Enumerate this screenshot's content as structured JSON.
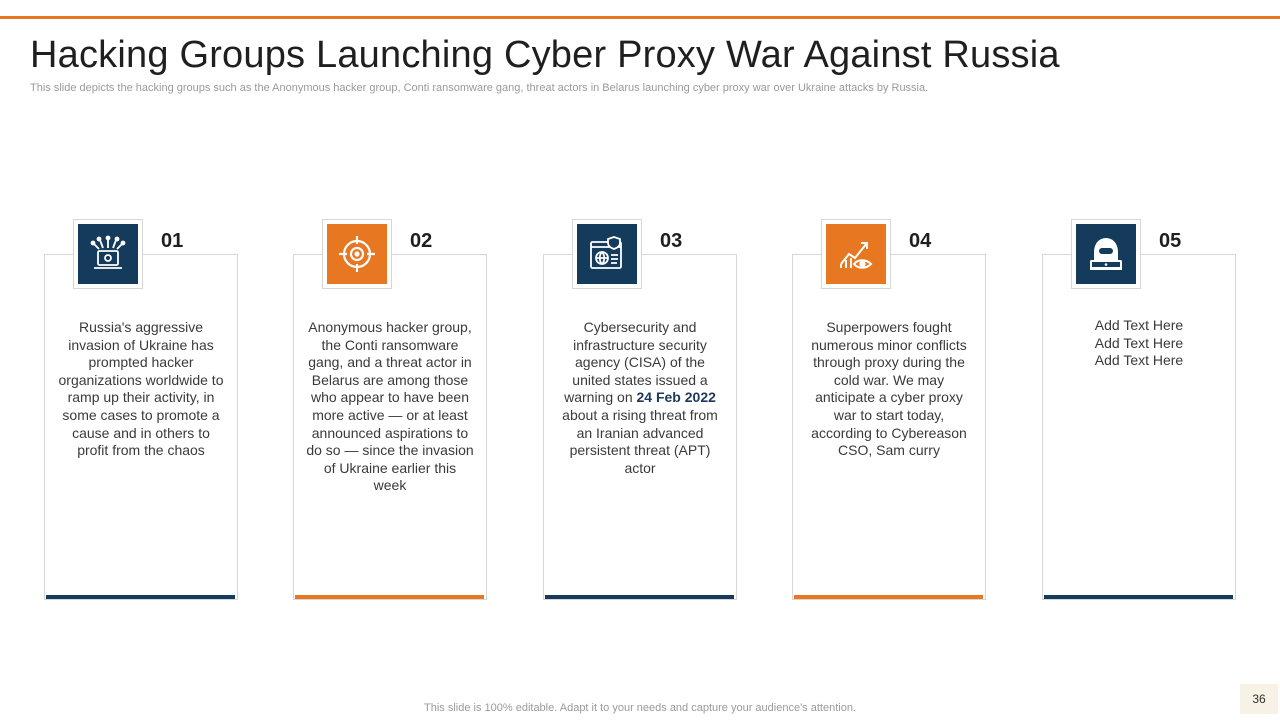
{
  "slide": {
    "title": "Hacking Groups Launching Cyber Proxy War Against Russia",
    "subtitle": "This slide depicts the hacking groups such as the Anonymous hacker group, Conti ransomware gang, threat actors in Belarus launching cyber proxy  war over Ukraine attacks by Russia.",
    "footer": "This slide is 100% editable. Adapt it to your needs and capture your audience's attention.",
    "page_number": "36",
    "accent_color": "#e87722",
    "navy_color": "#143a5c"
  },
  "cards": [
    {
      "number": "01",
      "icon": "laptop-antenna-icon",
      "color": "navy",
      "text": "Russia's aggressive invasion of Ukraine has prompted hacker organizations worldwide to ramp up their activity, in some cases to promote a cause and in others to profit from the chaos"
    },
    {
      "number": "02",
      "icon": "target-crosshair-icon",
      "color": "orange",
      "text": "Anonymous hacker group, the Conti ransomware gang, and a threat actor in Belarus are among those who appear to have been more active — or at least announced aspirations to do so — since the invasion of Ukraine earlier this week"
    },
    {
      "number": "03",
      "icon": "web-shield-icon",
      "color": "navy",
      "text_before": "Cybersecurity and infrastructure security agency (CISA) of the united states issued a warning on ",
      "text_bold": "24 Feb 2022",
      "text_after": " about a rising threat from an Iranian advanced persistent threat (APT) actor"
    },
    {
      "number": "04",
      "icon": "growth-chart-eye-icon",
      "color": "orange",
      "text": "Superpowers fought numerous minor conflicts through proxy during the cold war. We may anticipate a cyber proxy war to start today, according to Cybereason CSO, Sam curry"
    },
    {
      "number": "05",
      "icon": "hooded-hacker-icon",
      "color": "navy",
      "lines": [
        "Add Text Here",
        "Add Text Here",
        "Add Text Here"
      ]
    }
  ]
}
